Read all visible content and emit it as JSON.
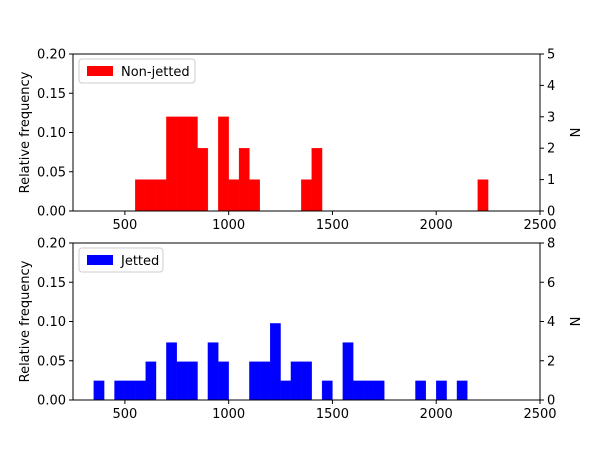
{
  "chart_data": [
    {
      "type": "bar",
      "xlim": [
        250,
        2500
      ],
      "ylim": [
        0,
        0.2
      ],
      "ylim_right": [
        0,
        5
      ],
      "bin_width": 50,
      "x_ticks": [
        500,
        1000,
        1500,
        2000,
        2500
      ],
      "y_ticks": [
        0.0,
        0.05,
        0.1,
        0.15,
        0.2
      ],
      "y_tick_labels": [
        "0.00",
        "0.05",
        "0.10",
        "0.15",
        "0.20"
      ],
      "y_right_ticks": [
        0,
        1,
        2,
        3,
        4,
        5
      ],
      "ylabel": "Relative frequency",
      "ylabel_right": "N",
      "legend": {
        "label": "Non-jetted",
        "position": "upper-left"
      },
      "color": "#ff0000",
      "series": [
        {
          "name": "Non-jetted",
          "bins": [
            {
              "x": 550,
              "count": 1
            },
            {
              "x": 600,
              "count": 1
            },
            {
              "x": 650,
              "count": 1
            },
            {
              "x": 700,
              "count": 3
            },
            {
              "x": 750,
              "count": 3
            },
            {
              "x": 800,
              "count": 3
            },
            {
              "x": 850,
              "count": 2
            },
            {
              "x": 950,
              "count": 3
            },
            {
              "x": 1000,
              "count": 1
            },
            {
              "x": 1050,
              "count": 2
            },
            {
              "x": 1100,
              "count": 1
            },
            {
              "x": 1350,
              "count": 1
            },
            {
              "x": 1400,
              "count": 2
            },
            {
              "x": 2200,
              "count": 1
            }
          ]
        }
      ]
    },
    {
      "type": "bar",
      "xlim": [
        250,
        2500
      ],
      "ylim": [
        0,
        0.2
      ],
      "ylim_right": [
        0,
        8
      ],
      "bin_width": 50,
      "x_ticks": [
        500,
        1000,
        1500,
        2000,
        2500
      ],
      "y_ticks": [
        0.0,
        0.05,
        0.1,
        0.15,
        0.2
      ],
      "y_tick_labels": [
        "0.00",
        "0.05",
        "0.10",
        "0.15",
        "0.20"
      ],
      "y_right_ticks": [
        0,
        2,
        4,
        6,
        8
      ],
      "ylabel": "Relative frequency",
      "ylabel_right": "N",
      "legend": {
        "label": "Jetted",
        "position": "upper-left"
      },
      "color": "#0000ff",
      "series": [
        {
          "name": "Jetted",
          "bins": [
            {
              "x": 350,
              "count": 1
            },
            {
              "x": 450,
              "count": 1
            },
            {
              "x": 500,
              "count": 1
            },
            {
              "x": 550,
              "count": 1
            },
            {
              "x": 600,
              "count": 2
            },
            {
              "x": 700,
              "count": 3
            },
            {
              "x": 750,
              "count": 2
            },
            {
              "x": 800,
              "count": 2
            },
            {
              "x": 900,
              "count": 3
            },
            {
              "x": 950,
              "count": 2
            },
            {
              "x": 1100,
              "count": 2
            },
            {
              "x": 1150,
              "count": 2
            },
            {
              "x": 1200,
              "count": 4
            },
            {
              "x": 1250,
              "count": 1
            },
            {
              "x": 1300,
              "count": 2
            },
            {
              "x": 1350,
              "count": 2
            },
            {
              "x": 1450,
              "count": 1
            },
            {
              "x": 1550,
              "count": 3
            },
            {
              "x": 1600,
              "count": 1
            },
            {
              "x": 1650,
              "count": 1
            },
            {
              "x": 1700,
              "count": 1
            },
            {
              "x": 1900,
              "count": 1
            },
            {
              "x": 2000,
              "count": 1
            },
            {
              "x": 2100,
              "count": 1
            }
          ]
        }
      ]
    }
  ]
}
